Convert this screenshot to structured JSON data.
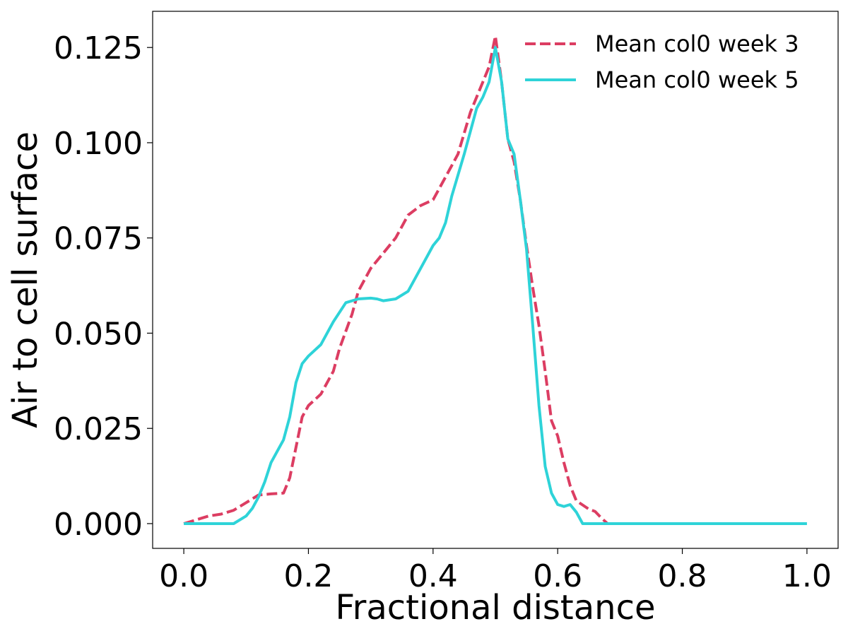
{
  "chart_data": {
    "type": "line",
    "title": "",
    "xlabel": "Fractional distance",
    "ylabel": "Air to cell surface",
    "xlim": [
      -0.05,
      1.05
    ],
    "ylim": [
      -0.0065,
      0.1345
    ],
    "xticks": [
      0.0,
      0.2,
      0.4,
      0.6,
      0.8,
      1.0
    ],
    "xtick_labels": [
      "0.0",
      "0.2",
      "0.4",
      "0.6",
      "0.8",
      "1.0"
    ],
    "yticks": [
      0.0,
      0.025,
      0.05,
      0.075,
      0.1,
      0.125
    ],
    "ytick_labels": [
      "0.000",
      "0.025",
      "0.050",
      "0.075",
      "0.100",
      "0.125"
    ],
    "grid": false,
    "legend_position": "top-right",
    "series": [
      {
        "name": "Mean col0 week 3",
        "color": "#dc3d62",
        "style": "dashed",
        "points": [
          [
            0.0,
            0.0
          ],
          [
            0.02,
            0.001
          ],
          [
            0.04,
            0.002
          ],
          [
            0.06,
            0.0025
          ],
          [
            0.08,
            0.0035
          ],
          [
            0.1,
            0.0055
          ],
          [
            0.12,
            0.0075
          ],
          [
            0.14,
            0.0078
          ],
          [
            0.16,
            0.008
          ],
          [
            0.17,
            0.012
          ],
          [
            0.18,
            0.02
          ],
          [
            0.19,
            0.028
          ],
          [
            0.2,
            0.031
          ],
          [
            0.22,
            0.034
          ],
          [
            0.24,
            0.04
          ],
          [
            0.25,
            0.046
          ],
          [
            0.27,
            0.055
          ],
          [
            0.28,
            0.061
          ],
          [
            0.3,
            0.067
          ],
          [
            0.32,
            0.071
          ],
          [
            0.34,
            0.075
          ],
          [
            0.36,
            0.081
          ],
          [
            0.38,
            0.0835
          ],
          [
            0.4,
            0.085
          ],
          [
            0.42,
            0.091
          ],
          [
            0.44,
            0.097
          ],
          [
            0.46,
            0.108
          ],
          [
            0.48,
            0.116
          ],
          [
            0.49,
            0.12
          ],
          [
            0.5,
            0.128
          ],
          [
            0.51,
            0.116
          ],
          [
            0.52,
            0.101
          ],
          [
            0.53,
            0.095
          ],
          [
            0.54,
            0.085
          ],
          [
            0.55,
            0.073
          ],
          [
            0.56,
            0.062
          ],
          [
            0.57,
            0.052
          ],
          [
            0.58,
            0.04
          ],
          [
            0.59,
            0.027
          ],
          [
            0.6,
            0.023
          ],
          [
            0.61,
            0.016
          ],
          [
            0.62,
            0.01
          ],
          [
            0.63,
            0.006
          ],
          [
            0.65,
            0.0038
          ],
          [
            0.66,
            0.0032
          ],
          [
            0.67,
            0.0015
          ],
          [
            0.68,
            0.0
          ],
          [
            1.0,
            0.0
          ]
        ]
      },
      {
        "name": "Mean col0 week 5",
        "color": "#2ed3d8",
        "style": "solid",
        "points": [
          [
            0.0,
            0.0
          ],
          [
            0.02,
            0.0
          ],
          [
            0.04,
            0.0
          ],
          [
            0.06,
            0.0
          ],
          [
            0.08,
            0.0
          ],
          [
            0.1,
            0.002
          ],
          [
            0.11,
            0.004
          ],
          [
            0.12,
            0.007
          ],
          [
            0.13,
            0.011
          ],
          [
            0.14,
            0.016
          ],
          [
            0.16,
            0.022
          ],
          [
            0.17,
            0.028
          ],
          [
            0.18,
            0.037
          ],
          [
            0.19,
            0.042
          ],
          [
            0.2,
            0.044
          ],
          [
            0.22,
            0.047
          ],
          [
            0.24,
            0.053
          ],
          [
            0.26,
            0.058
          ],
          [
            0.28,
            0.059
          ],
          [
            0.3,
            0.0592
          ],
          [
            0.31,
            0.059
          ],
          [
            0.32,
            0.0585
          ],
          [
            0.34,
            0.059
          ],
          [
            0.36,
            0.061
          ],
          [
            0.38,
            0.067
          ],
          [
            0.4,
            0.073
          ],
          [
            0.41,
            0.075
          ],
          [
            0.42,
            0.079
          ],
          [
            0.43,
            0.086
          ],
          [
            0.45,
            0.097
          ],
          [
            0.47,
            0.109
          ],
          [
            0.48,
            0.112
          ],
          [
            0.49,
            0.116
          ],
          [
            0.5,
            0.125
          ],
          [
            0.51,
            0.116
          ],
          [
            0.52,
            0.101
          ],
          [
            0.53,
            0.097
          ],
          [
            0.54,
            0.085
          ],
          [
            0.55,
            0.072
          ],
          [
            0.56,
            0.052
          ],
          [
            0.57,
            0.031
          ],
          [
            0.58,
            0.015
          ],
          [
            0.59,
            0.008
          ],
          [
            0.6,
            0.005
          ],
          [
            0.61,
            0.0045
          ],
          [
            0.62,
            0.005
          ],
          [
            0.63,
            0.003
          ],
          [
            0.64,
            0.0
          ],
          [
            1.0,
            0.0
          ]
        ]
      }
    ]
  }
}
